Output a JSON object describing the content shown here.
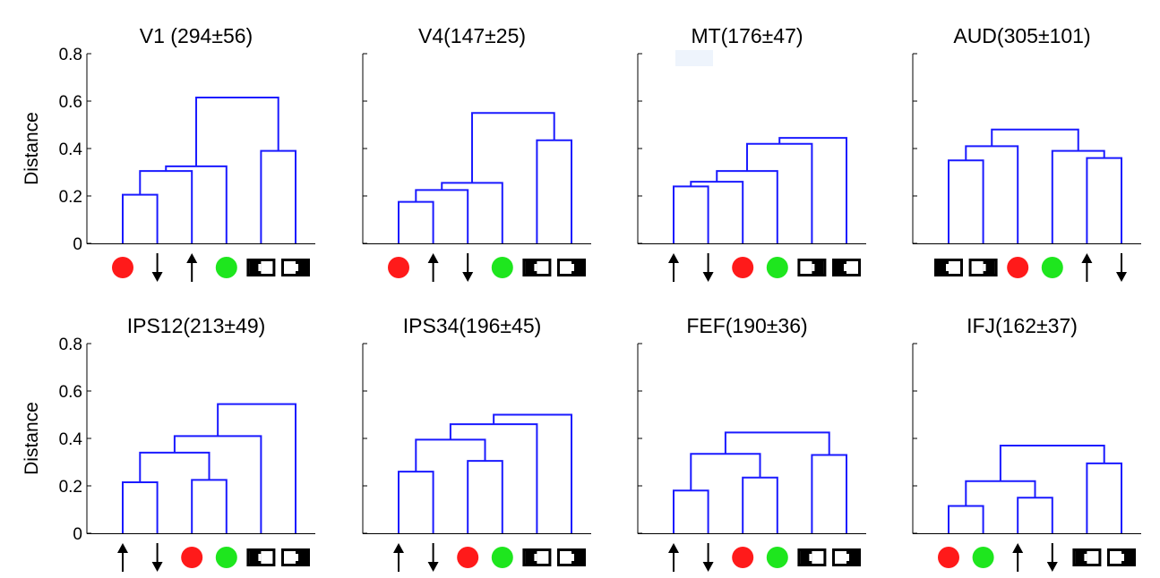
{
  "figure": {
    "ylabel": "Distance",
    "colors": {
      "tree": "#1a1aff",
      "red": "#ff1a1a",
      "green": "#1ee61e",
      "axis": "#000000",
      "highlight": "#eef4fc"
    }
  },
  "chart_data": [
    {
      "type": "dendrogram",
      "title": "V1 (294±56)",
      "ylim": [
        0,
        0.8
      ],
      "yticks": [
        "0",
        "0.2",
        "0.4",
        "0.6",
        "0.8"
      ],
      "ylabel": "Distance",
      "leaves": [
        "red-circle",
        "down-arrow",
        "up-arrow",
        "green-circle",
        "black-white-square",
        "white-black-square"
      ],
      "links": [
        [
          0,
          1,
          0.205
        ],
        [
          6,
          2,
          0.305
        ],
        [
          7,
          3,
          0.325
        ],
        [
          4,
          5,
          0.39
        ],
        [
          8,
          9,
          0.615
        ]
      ]
    },
    {
      "type": "dendrogram",
      "title": "V4(147±25)",
      "ylim": [
        0,
        0.8
      ],
      "leaves": [
        "red-circle",
        "up-arrow",
        "down-arrow",
        "green-circle",
        "black-white-square",
        "white-black-square"
      ],
      "links": [
        [
          0,
          1,
          0.175
        ],
        [
          6,
          2,
          0.225
        ],
        [
          7,
          3,
          0.255
        ],
        [
          4,
          5,
          0.435
        ],
        [
          8,
          9,
          0.55
        ]
      ]
    },
    {
      "type": "dendrogram",
      "title": "MT(176±47)",
      "ylim": [
        0,
        0.8
      ],
      "leaves": [
        "up-arrow",
        "down-arrow",
        "red-circle",
        "green-circle",
        "white-black-square",
        "black-white-square"
      ],
      "links": [
        [
          0,
          1,
          0.24
        ],
        [
          6,
          2,
          0.26
        ],
        [
          7,
          3,
          0.305
        ],
        [
          8,
          4,
          0.42
        ],
        [
          9,
          5,
          0.445
        ]
      ]
    },
    {
      "type": "dendrogram",
      "title": "AUD(305±101)",
      "ylim": [
        0,
        0.8
      ],
      "leaves": [
        "black-white-square",
        "white-black-square",
        "red-circle",
        "green-circle",
        "up-arrow",
        "down-arrow"
      ],
      "links": [
        [
          0,
          1,
          0.35
        ],
        [
          6,
          2,
          0.41
        ],
        [
          4,
          5,
          0.36
        ],
        [
          3,
          8,
          0.39
        ],
        [
          7,
          9,
          0.48
        ]
      ]
    },
    {
      "type": "dendrogram",
      "title": "IPS12(213±49)",
      "ylim": [
        0,
        0.8
      ],
      "yticks": [
        "0",
        "0.2",
        "0.4",
        "0.6",
        "0.8"
      ],
      "ylabel": "Distance",
      "leaves": [
        "up-arrow",
        "down-arrow",
        "red-circle",
        "green-circle",
        "black-white-square",
        "white-black-square"
      ],
      "links": [
        [
          0,
          1,
          0.215
        ],
        [
          2,
          3,
          0.225
        ],
        [
          6,
          7,
          0.34
        ],
        [
          8,
          4,
          0.41
        ],
        [
          9,
          5,
          0.545
        ]
      ]
    },
    {
      "type": "dendrogram",
      "title": "IPS34(196±45)",
      "ylim": [
        0,
        0.8
      ],
      "leaves": [
        "up-arrow",
        "down-arrow",
        "red-circle",
        "green-circle",
        "black-white-square",
        "white-black-square"
      ],
      "links": [
        [
          0,
          1,
          0.26
        ],
        [
          2,
          3,
          0.305
        ],
        [
          6,
          7,
          0.395
        ],
        [
          8,
          4,
          0.46
        ],
        [
          9,
          5,
          0.5
        ]
      ]
    },
    {
      "type": "dendrogram",
      "title": "FEF(190±36)",
      "ylim": [
        0,
        0.8
      ],
      "leaves": [
        "up-arrow",
        "down-arrow",
        "red-circle",
        "green-circle",
        "black-white-square",
        "white-black-square"
      ],
      "links": [
        [
          0,
          1,
          0.18
        ],
        [
          2,
          3,
          0.235
        ],
        [
          4,
          5,
          0.33
        ],
        [
          6,
          7,
          0.335
        ],
        [
          9,
          8,
          0.425
        ]
      ]
    },
    {
      "type": "dendrogram",
      "title": "IFJ(162±37)",
      "ylim": [
        0,
        0.8
      ],
      "leaves": [
        "red-circle",
        "green-circle",
        "up-arrow",
        "down-arrow",
        "black-white-square",
        "white-black-square"
      ],
      "links": [
        [
          0,
          1,
          0.115
        ],
        [
          2,
          3,
          0.15
        ],
        [
          6,
          7,
          0.22
        ],
        [
          4,
          5,
          0.295
        ],
        [
          8,
          9,
          0.37
        ]
      ]
    }
  ]
}
